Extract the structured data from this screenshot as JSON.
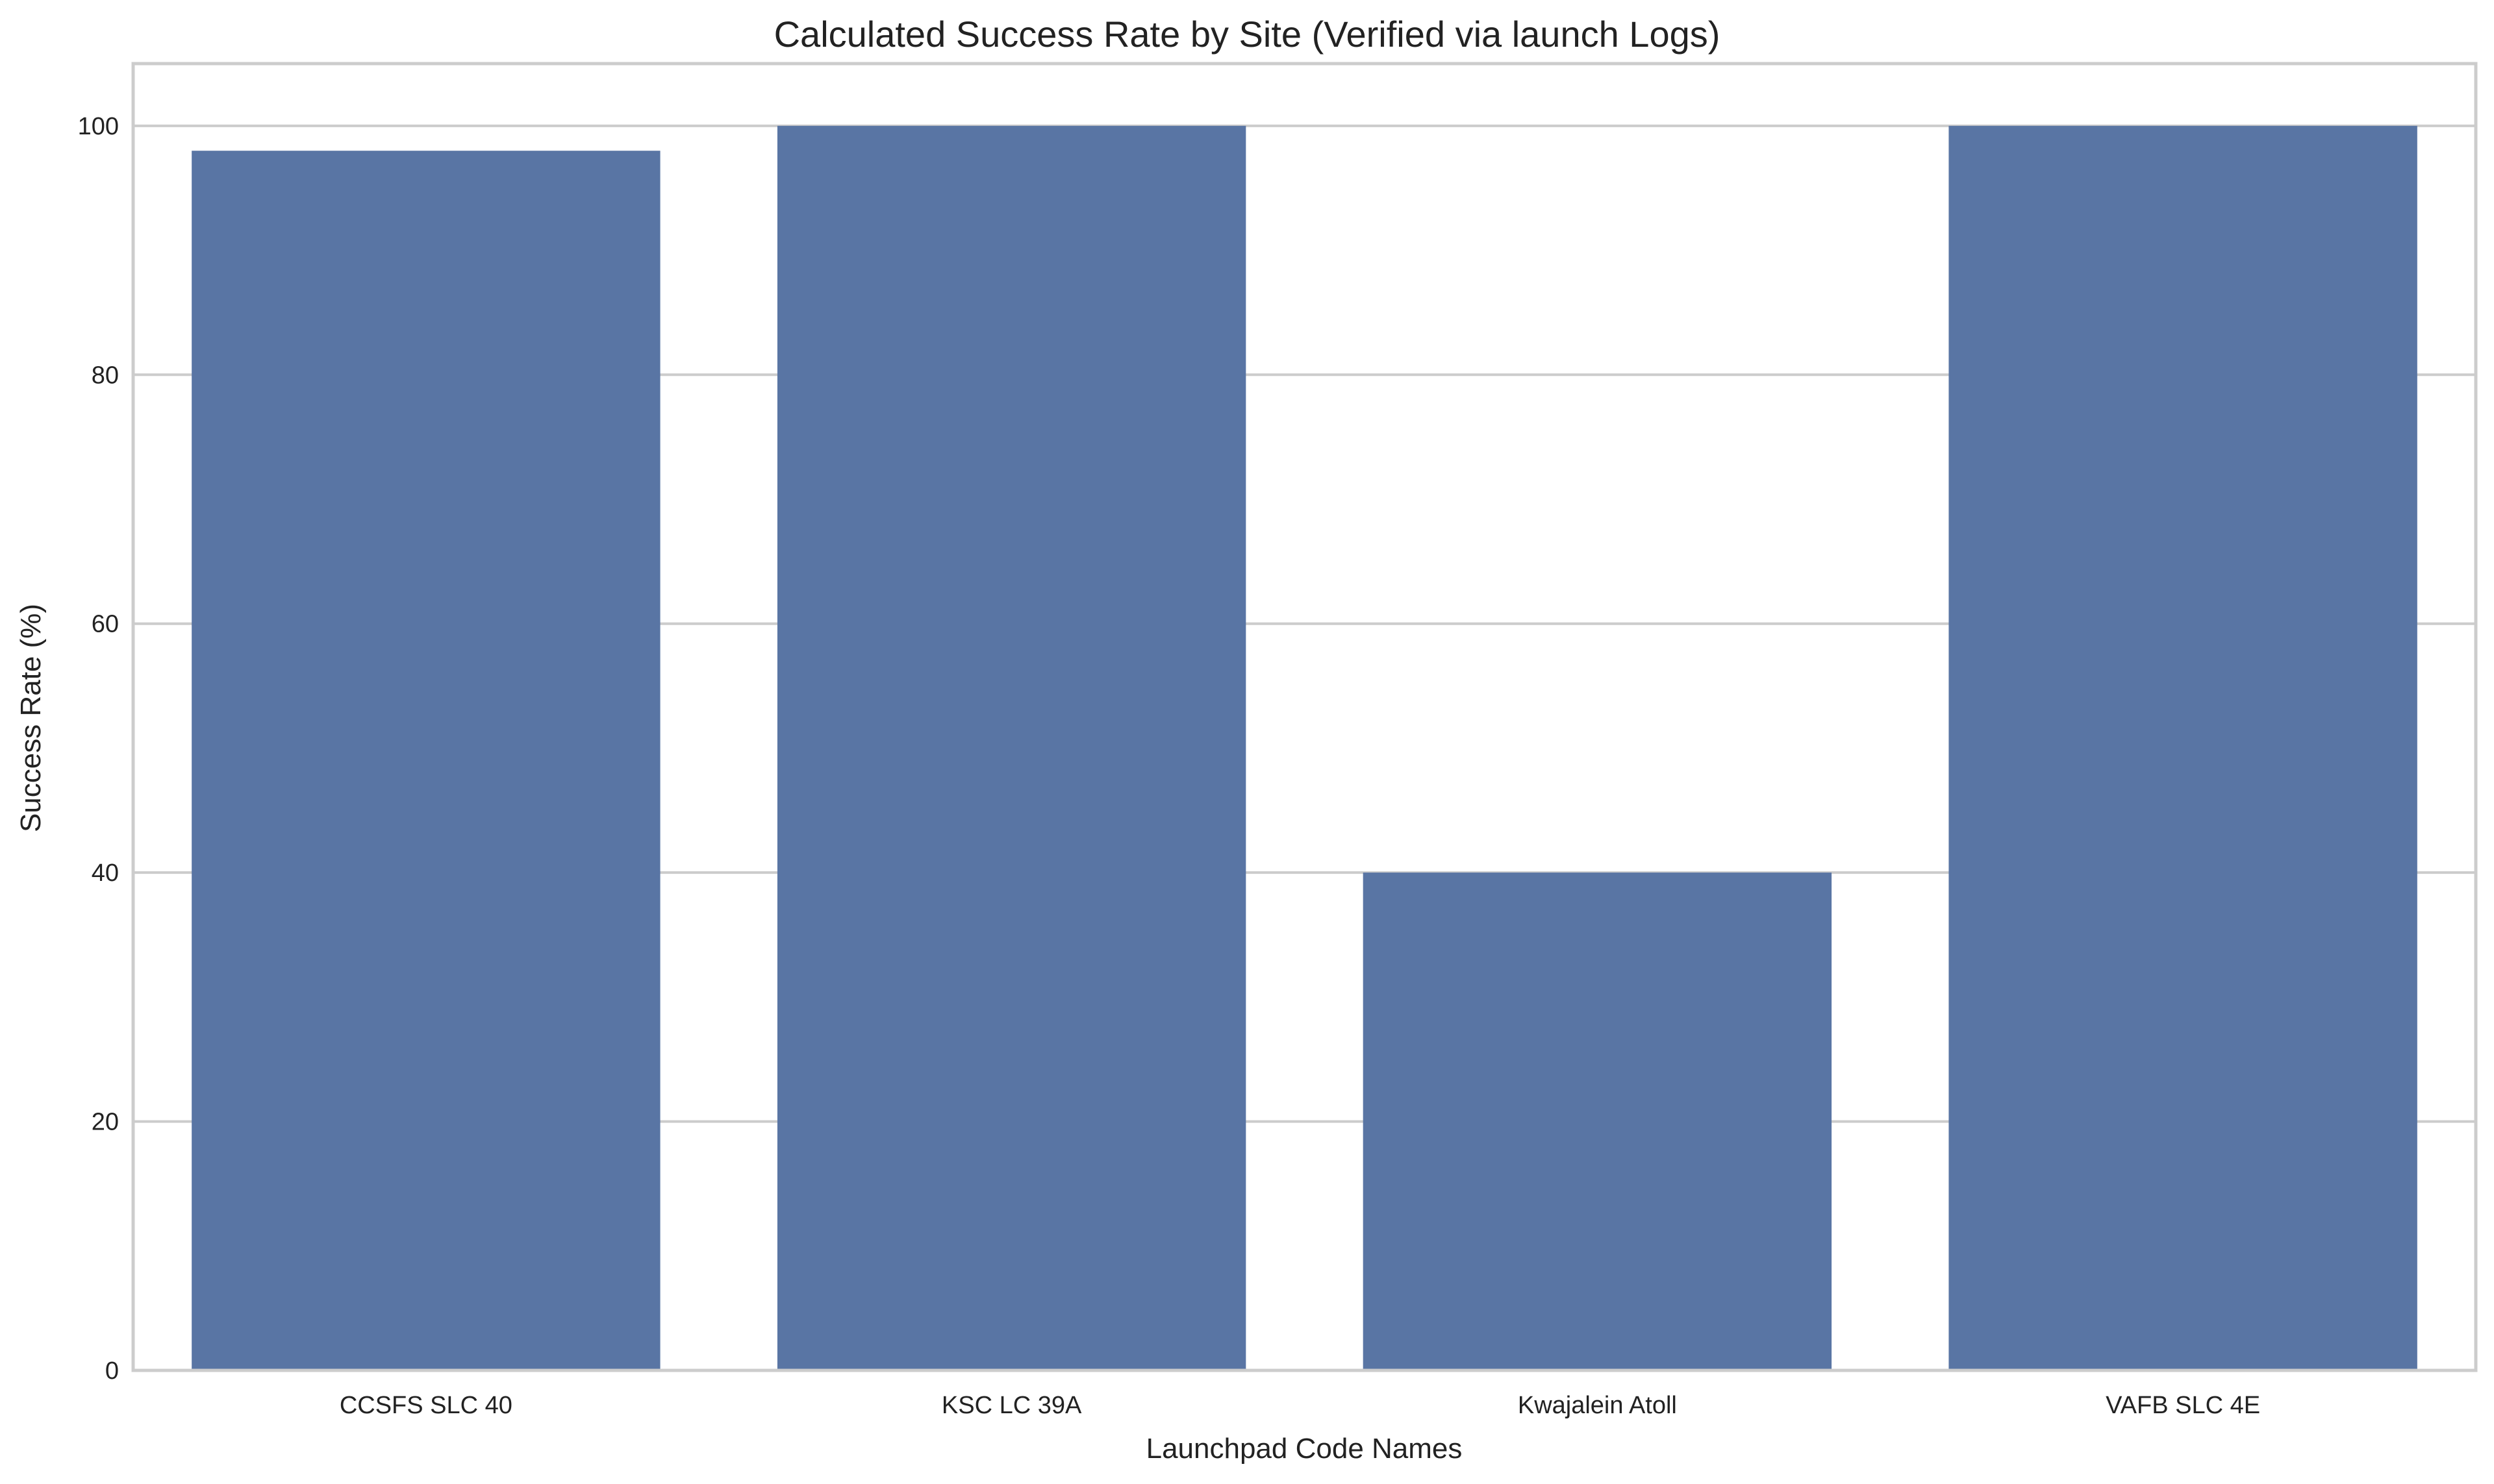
{
  "chart_data": {
    "type": "bar",
    "title": "Calculated Success Rate by Site (Verified via launch Logs)",
    "xlabel": "Launchpad Code Names",
    "ylabel": "Success Rate (%)",
    "categories": [
      "CCSFS SLC 40",
      "KSC LC 39A",
      "Kwajalein Atoll",
      "VAFB SLC 4E"
    ],
    "values": [
      98,
      100,
      40,
      100
    ],
    "ylim": [
      0,
      105
    ],
    "yticks": [
      0,
      20,
      40,
      60,
      80,
      100
    ],
    "grid": true,
    "bar_color": "#5975a4"
  }
}
